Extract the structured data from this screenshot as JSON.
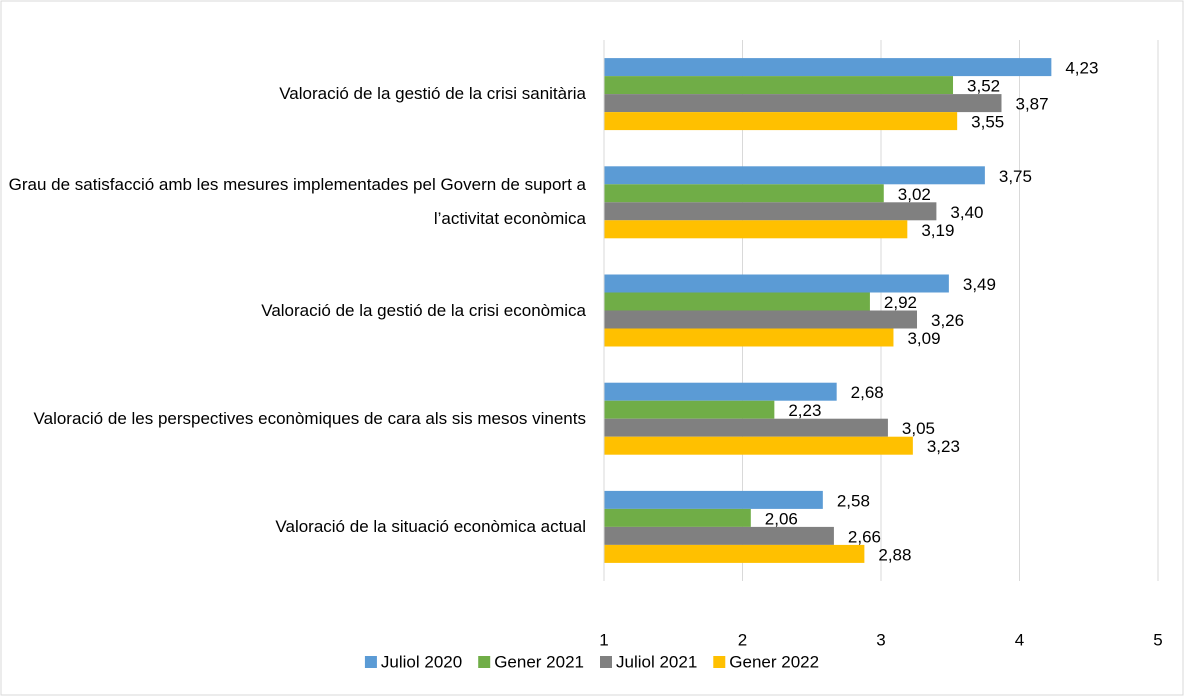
{
  "chart_data": {
    "type": "barh",
    "categories": [
      "Valoració de la gestió de la crisi sanitària",
      "Grau de satisfacció amb les mesures implementades pel Govern de suport a l’activitat econòmica",
      "Valoració de la gestió de la crisi econòmica",
      "Valoració de les perspectives econòmiques de cara als sis mesos vinents",
      "Valoració de la situació econòmica actual"
    ],
    "series": [
      {
        "name": "Juliol 2020",
        "color": "#5b9bd5",
        "values": [
          4.23,
          3.75,
          3.49,
          2.68,
          2.58
        ],
        "value_labels": [
          "4,23",
          "3,75",
          "3,49",
          "2,68",
          "2,58"
        ]
      },
      {
        "name": "Gener 2021",
        "color": "#70ad47",
        "values": [
          3.52,
          3.02,
          2.92,
          2.23,
          2.06
        ],
        "value_labels": [
          "3,52",
          "3,02",
          "2,92",
          "2,23",
          "2,06"
        ]
      },
      {
        "name": "Juliol 2021",
        "color": "#808080",
        "values": [
          3.87,
          3.4,
          3.26,
          3.05,
          2.66
        ],
        "value_labels": [
          "3,87",
          "3,40",
          "3,26",
          "3,05",
          "2,66"
        ]
      },
      {
        "name": "Gener 2022",
        "color": "#ffc000",
        "values": [
          3.55,
          3.19,
          3.09,
          3.23,
          2.88
        ],
        "value_labels": [
          "3,55",
          "3,19",
          "3,09",
          "3,23",
          "2,88"
        ]
      }
    ],
    "xlim": [
      1,
      5
    ],
    "xticks": [
      1,
      2,
      3,
      4,
      5
    ],
    "grid": true,
    "legend": "bottom"
  }
}
